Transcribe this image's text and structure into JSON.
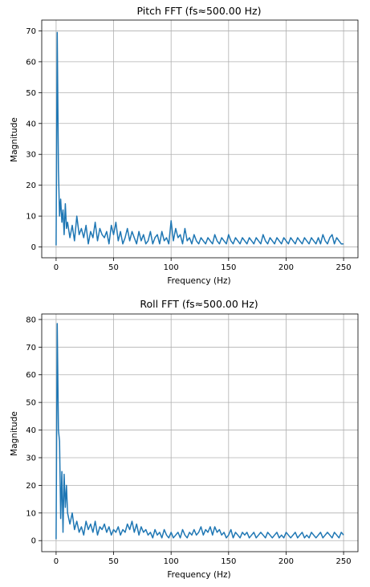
{
  "chart_data": [
    {
      "type": "line",
      "title": "Pitch FFT (fs≈500.00 Hz)",
      "xlabel": "Frequency (Hz)",
      "ylabel": "Magnitude",
      "xlim": [
        -12.5,
        262.5
      ],
      "ylim": [
        -3.5,
        73.5
      ],
      "xticks": [
        0,
        50,
        100,
        150,
        200,
        250
      ],
      "yticks": [
        0,
        10,
        20,
        30,
        40,
        50,
        60,
        70
      ],
      "grid": true,
      "color": "#1f77b4",
      "series": [
        {
          "x": [
            0,
            1,
            2,
            3,
            4,
            5,
            6,
            7,
            8,
            9,
            10,
            12,
            14,
            16,
            18,
            20,
            22,
            24,
            26,
            28,
            30,
            32,
            34,
            36,
            38,
            40,
            42,
            44,
            46,
            48,
            50,
            52,
            54,
            56,
            58,
            60,
            62,
            64,
            66,
            68,
            70,
            72,
            74,
            76,
            78,
            80,
            82,
            84,
            86,
            88,
            90,
            92,
            94,
            96,
            98,
            100,
            102,
            104,
            106,
            108,
            110,
            112,
            114,
            116,
            118,
            120,
            122,
            124,
            126,
            128,
            130,
            132,
            134,
            136,
            138,
            140,
            142,
            144,
            146,
            148,
            150,
            152,
            154,
            156,
            158,
            160,
            162,
            164,
            166,
            168,
            170,
            172,
            174,
            176,
            178,
            180,
            182,
            184,
            186,
            188,
            190,
            192,
            194,
            196,
            198,
            200,
            202,
            204,
            206,
            208,
            210,
            212,
            214,
            216,
            218,
            220,
            222,
            224,
            226,
            228,
            230,
            232,
            234,
            236,
            238,
            240,
            242,
            244,
            246,
            248,
            250
          ],
          "y": [
            0.5,
            69.5,
            25,
            10,
            15.5,
            8,
            12,
            4,
            14,
            6,
            8,
            3,
            7,
            2,
            10,
            4,
            6,
            3,
            7,
            1,
            5,
            3,
            8,
            2,
            6,
            4,
            3,
            5,
            1,
            7,
            4,
            8,
            2,
            5,
            1,
            3,
            6,
            2,
            5,
            3,
            1,
            5,
            2,
            4,
            1,
            2,
            5,
            1,
            3,
            4,
            1,
            5,
            2,
            3,
            1,
            8.5,
            2,
            6,
            3,
            4,
            1,
            6,
            2,
            3,
            1,
            4,
            2,
            1,
            3,
            2,
            1,
            3,
            2,
            1,
            4,
            2,
            1,
            3,
            2,
            1,
            4,
            2,
            1,
            3,
            2,
            1,
            3,
            2,
            1,
            3,
            2,
            1,
            3,
            2,
            1,
            4,
            2,
            1,
            3,
            2,
            1,
            3,
            2,
            1,
            3,
            2,
            1,
            3,
            2,
            1,
            3,
            2,
            1,
            3,
            2,
            1,
            3,
            2,
            1,
            3,
            1,
            4,
            2,
            1,
            3,
            4,
            1,
            3,
            2,
            1,
            1
          ]
        }
      ]
    },
    {
      "type": "line",
      "title": "Roll FFT (fs≈500.00 Hz)",
      "xlabel": "Frequency (Hz)",
      "ylabel": "Magnitude",
      "xlim": [
        -12.5,
        262.5
      ],
      "ylim": [
        -4,
        82
      ],
      "xticks": [
        0,
        50,
        100,
        150,
        200,
        250
      ],
      "yticks": [
        0,
        10,
        20,
        30,
        40,
        50,
        60,
        70,
        80
      ],
      "grid": true,
      "color": "#1f77b4",
      "series": [
        {
          "x": [
            0,
            1,
            2,
            3,
            4,
            5,
            6,
            7,
            8,
            9,
            10,
            12,
            14,
            16,
            18,
            20,
            22,
            24,
            26,
            28,
            30,
            32,
            34,
            36,
            38,
            40,
            42,
            44,
            46,
            48,
            50,
            52,
            54,
            56,
            58,
            60,
            62,
            64,
            66,
            68,
            70,
            72,
            74,
            76,
            78,
            80,
            82,
            84,
            86,
            88,
            90,
            92,
            94,
            96,
            98,
            100,
            102,
            104,
            106,
            108,
            110,
            112,
            114,
            116,
            118,
            120,
            122,
            124,
            126,
            128,
            130,
            132,
            134,
            136,
            138,
            140,
            142,
            144,
            146,
            148,
            150,
            152,
            154,
            156,
            158,
            160,
            162,
            164,
            166,
            168,
            170,
            172,
            174,
            176,
            178,
            180,
            182,
            184,
            186,
            188,
            190,
            192,
            194,
            196,
            198,
            200,
            202,
            204,
            206,
            208,
            210,
            212,
            214,
            216,
            218,
            220,
            222,
            224,
            226,
            228,
            230,
            232,
            234,
            236,
            238,
            240,
            242,
            244,
            246,
            248,
            250
          ],
          "y": [
            0.5,
            78.5,
            40,
            36,
            8,
            25,
            3,
            24,
            12,
            20,
            10,
            6,
            10,
            4,
            7,
            3,
            5,
            2,
            7,
            4,
            6,
            3,
            7,
            2,
            5,
            4,
            6,
            3,
            5,
            2,
            4,
            3,
            5,
            2,
            4,
            3,
            6,
            4,
            7,
            3,
            6,
            2,
            5,
            3,
            4,
            2,
            3,
            1,
            4,
            2,
            3,
            1,
            4,
            2,
            1,
            3,
            1,
            2,
            3,
            1,
            4,
            2,
            1,
            3,
            2,
            4,
            2,
            3,
            5,
            2,
            4,
            3,
            5,
            2,
            5,
            3,
            4,
            2,
            3,
            1,
            2,
            4,
            1,
            3,
            2,
            1,
            3,
            2,
            3,
            1,
            2,
            3,
            1,
            2,
            3,
            2,
            1,
            3,
            2,
            1,
            2,
            3,
            1,
            2,
            1,
            3,
            2,
            1,
            2,
            3,
            1,
            2,
            3,
            1,
            2,
            1,
            3,
            2,
            1,
            2,
            3,
            1,
            2,
            3,
            2,
            1,
            3,
            2,
            1,
            3,
            2
          ]
        }
      ]
    }
  ]
}
